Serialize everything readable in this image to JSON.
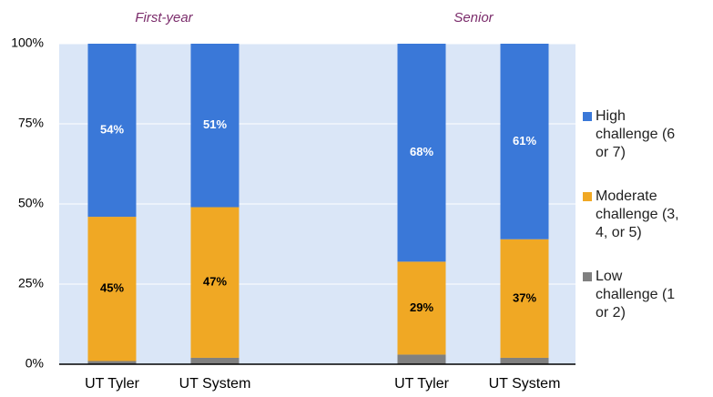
{
  "chart_data": {
    "type": "stacked_bar",
    "groups": [
      {
        "name": "First-year",
        "categories": [
          "UT Tyler",
          "UT System"
        ]
      },
      {
        "name": "Senior",
        "categories": [
          "UT Tyler",
          "UT System"
        ]
      }
    ],
    "series": [
      {
        "name": "High challenge (6 or 7)",
        "color": "#3a78d8",
        "values": [
          54,
          51,
          68,
          61
        ],
        "value_labels": [
          "54%",
          "51%",
          "68%",
          "61%"
        ]
      },
      {
        "name": "Moderate challenge (3, 4, or 5)",
        "color": "#f0a824",
        "values": [
          45,
          47,
          29,
          37
        ],
        "value_labels": [
          "45%",
          "47%",
          "29%",
          "37%"
        ]
      },
      {
        "name": "Low challenge (1 or 2)",
        "color": "#808080",
        "values": [
          1,
          2,
          3,
          2
        ]
      }
    ],
    "ylim": [
      0,
      100
    ],
    "yticks": [
      {
        "value": 0,
        "label": "0%"
      },
      {
        "value": 25,
        "label": "25%"
      },
      {
        "value": 50,
        "label": "50%"
      },
      {
        "value": 75,
        "label": "75%"
      },
      {
        "value": 100,
        "label": "100%"
      }
    ],
    "grid": true,
    "legend": "right"
  }
}
